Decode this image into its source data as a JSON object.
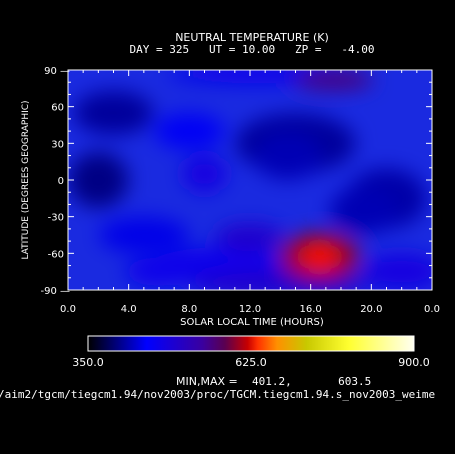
{
  "chart_data": {
    "type": "heatmap",
    "title": "NEUTRAL TEMPERATURE (K)",
    "subtitle": "DAY = 325   UT = 10.00   ZP =   -4.00",
    "xlabel": "SOLAR LOCAL TIME (HOURS)",
    "ylabel": "LATITUDE (DEGREES GEOGRAPHIC)",
    "xlim": [
      0,
      24
    ],
    "ylim": [
      -90,
      90
    ],
    "x_ticks": [
      "0.0",
      "4.0",
      "8.0",
      "12.0",
      "16.0",
      "20.0",
      "0.0"
    ],
    "y_ticks": [
      "90",
      "60",
      "30",
      "0",
      "-30",
      "-60",
      "-90"
    ],
    "grid": false,
    "colorscale": {
      "min": 350.0,
      "mid": 625.0,
      "max": 900.0,
      "labels": [
        "350.0",
        "625.0",
        "900.0"
      ],
      "colors": [
        "#000000",
        "#0000ff",
        "#3a00a0",
        "#5a0050",
        "#c80000",
        "#ff3000",
        "#ff9000",
        "#c8c800",
        "#ffff30",
        "#fffff0"
      ]
    },
    "field_min": 401.2,
    "field_max": 603.5,
    "minmax_label": "MIN,MAX =",
    "minmax_values": "401.2,       603.5",
    "features": [
      {
        "x": 2.0,
        "y": 0,
        "value": 401.2,
        "kind": "min"
      },
      {
        "x": 16.6,
        "y": -63,
        "value": 603.5,
        "kind": "max"
      },
      {
        "x": 17.5,
        "y": 82,
        "value": 560,
        "kind": "local-max"
      },
      {
        "x": 12.0,
        "y": -47,
        "value": 500,
        "kind": "local-max"
      },
      {
        "x": 9.0,
        "y": 5,
        "value": 480,
        "kind": "local-max"
      },
      {
        "x": 6.0,
        "y": -75,
        "value": 470,
        "kind": "local-max"
      },
      {
        "x": 14.5,
        "y": 20,
        "value": 420,
        "kind": "local-min"
      },
      {
        "x": 19.5,
        "y": -25,
        "value": 420,
        "kind": "local-min"
      }
    ]
  },
  "footer_path": "/aim2/tgcm/tiegcm1.94/nov2003/proc/TGCM.tiegcm1.94.s_nov2003_weime"
}
